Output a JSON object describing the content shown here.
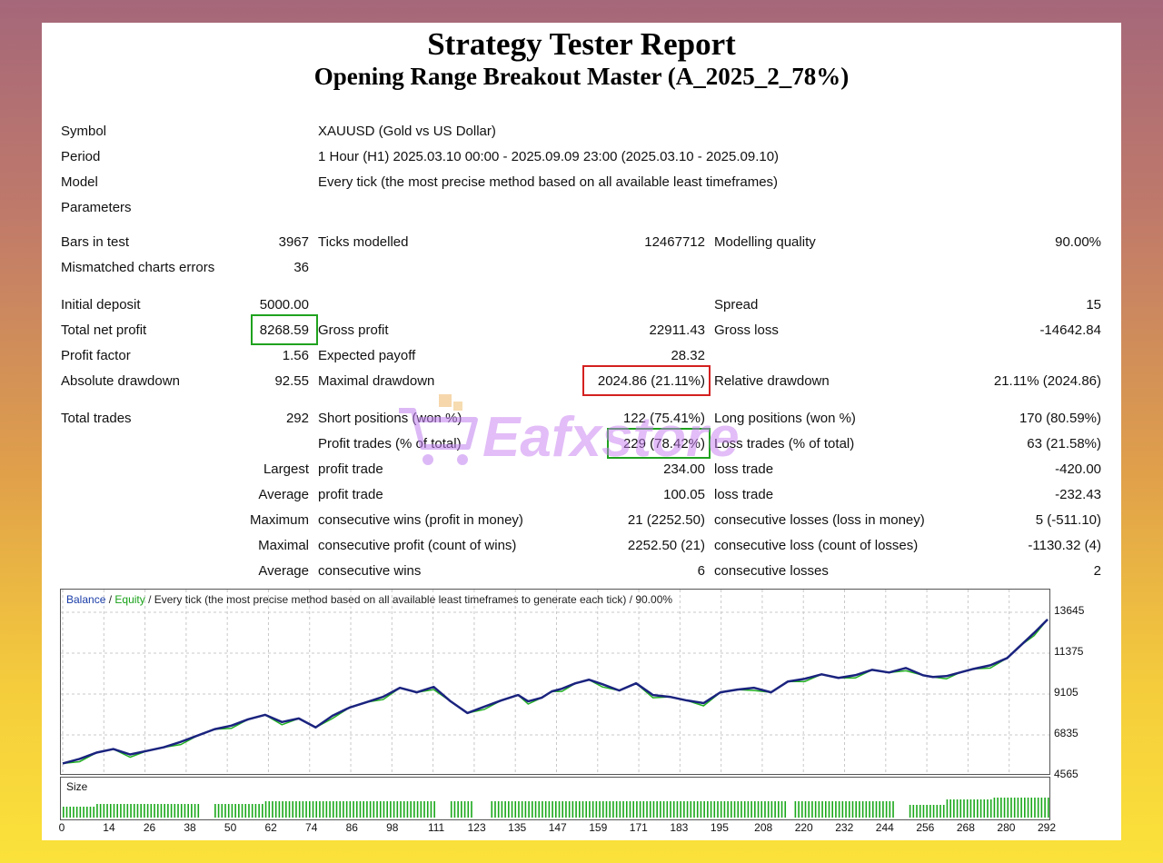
{
  "report": {
    "title": "Strategy Tester Report",
    "subtitle": "Opening Range Breakout Master (A_2025_2_78%)"
  },
  "info": {
    "symbol_label": "Symbol",
    "symbol_value": "XAUUSD (Gold vs US Dollar)",
    "period_label": "Period",
    "period_value": "1 Hour (H1) 2025.03.10 00:00 - 2025.09.09 23:00 (2025.03.10 - 2025.09.10)",
    "model_label": "Model",
    "model_value": "Every tick (the most precise method based on all available least timeframes)",
    "parameters_label": "Parameters"
  },
  "stats": {
    "bars_label": "Bars in test",
    "bars_value": "3967",
    "ticks_label": "Ticks modelled",
    "ticks_value": "12467712",
    "quality_label": "Modelling quality",
    "quality_value": "90.00%",
    "mismatched_label": "Mismatched charts errors",
    "mismatched_value": "36",
    "initial_label": "Initial deposit",
    "initial_value": "5000.00",
    "spread_label": "Spread",
    "spread_value": "15",
    "netprofit_label": "Total net profit",
    "netprofit_value": "8268.59",
    "grossprofit_label": "Gross profit",
    "grossprofit_value": "22911.43",
    "grossloss_label": "Gross loss",
    "grossloss_value": "-14642.84",
    "pf_label": "Profit factor",
    "pf_value": "1.56",
    "payoff_label": "Expected payoff",
    "payoff_value": "28.32",
    "absdd_label": "Absolute drawdown",
    "absdd_value": "92.55",
    "maxdd_label": "Maximal drawdown",
    "maxdd_value": "2024.86 (21.11%)",
    "reldd_label": "Relative drawdown",
    "reldd_value": "21.11% (2024.86)",
    "trades_label": "Total trades",
    "trades_value": "292",
    "short_label": "Short positions (won %)",
    "short_value": "122 (75.41%)",
    "long_label": "Long positions (won %)",
    "long_value": "170 (80.59%)",
    "proftrades_label": "Profit trades (% of total)",
    "proftrades_value": "229 (78.42%)",
    "losstrades_label": "Loss trades (% of total)",
    "losstrades_value": "63 (21.58%)",
    "largest_label": "Largest",
    "largest_profit_label": "profit trade",
    "largest_profit_value": "234.00",
    "largest_loss_label": "loss trade",
    "largest_loss_value": "-420.00",
    "average_label": "Average",
    "average_profit_label": "profit trade",
    "average_profit_value": "100.05",
    "average_loss_label": "loss trade",
    "average_loss_value": "-232.43",
    "maximum_label": "Maximum",
    "max_wins_label": "consecutive wins (profit in money)",
    "max_wins_value": "21 (2252.50)",
    "max_losses_label": "consecutive losses (loss in money)",
    "max_losses_value": "5 (-511.10)",
    "maximal_label": "Maximal",
    "maximal_profit_label": "consecutive profit (count of wins)",
    "maximal_profit_value": "2252.50 (21)",
    "maximal_loss_label": "consecutive loss (count of losses)",
    "maximal_loss_value": "-1130.32 (4)",
    "avgcons_label": "Average",
    "avg_wins_label": "consecutive wins",
    "avg_wins_value": "6",
    "avg_losses_label": "consecutive losses",
    "avg_losses_value": "2"
  },
  "watermark": {
    "text": "Eafxstore",
    "icon": "shopping-cart-icon"
  },
  "colors": {
    "balance": "#1a237e",
    "equity": "#22b022",
    "grid": "#c8c8c8",
    "box_green": "#1fa21f",
    "box_red": "#d42020",
    "size_bars": "#1aa81a"
  },
  "chart": {
    "legend_balance": "Balance",
    "legend_sep1": " / ",
    "legend_equity": "Equity",
    "legend_rest": " / Every tick (the most precise method based on all available least timeframes to generate each tick) / 90.00%",
    "yticks": [
      "13645",
      "11375",
      "9105",
      "6835",
      "4565"
    ],
    "xticks": [
      "0",
      "14",
      "26",
      "38",
      "50",
      "62",
      "74",
      "86",
      "98",
      "111",
      "123",
      "135",
      "147",
      "159",
      "171",
      "183",
      "195",
      "208",
      "220",
      "232",
      "244",
      "256",
      "268",
      "280",
      "292"
    ],
    "size_label": "Size"
  },
  "chart_data": {
    "type": "line",
    "title": "",
    "xlabel": "",
    "ylabel": "",
    "ylim": [
      4565,
      13645
    ],
    "xlim": [
      0,
      292
    ],
    "series": [
      {
        "name": "Balance",
        "x": [
          0,
          5,
          10,
          15,
          20,
          25,
          30,
          35,
          40,
          45,
          50,
          55,
          60,
          65,
          70,
          75,
          80,
          85,
          90,
          95,
          100,
          105,
          110,
          115,
          120,
          125,
          130,
          135,
          138,
          142,
          145,
          148,
          152,
          156,
          160,
          165,
          170,
          175,
          180,
          185,
          190,
          195,
          200,
          205,
          210,
          215,
          220,
          225,
          230,
          235,
          240,
          245,
          250,
          255,
          258,
          262,
          266,
          270,
          275,
          280,
          284,
          288,
          292
        ],
        "y": [
          5250,
          5500,
          5850,
          6050,
          5750,
          5950,
          6150,
          6450,
          6800,
          7150,
          7350,
          7700,
          7950,
          7550,
          7750,
          7250,
          7900,
          8350,
          8650,
          8950,
          9450,
          9200,
          9500,
          8700,
          8050,
          8400,
          8750,
          9050,
          8700,
          8900,
          9250,
          9400,
          9700,
          9900,
          9650,
          9300,
          9700,
          9050,
          8950,
          8750,
          8600,
          9200,
          9350,
          9450,
          9200,
          9800,
          9950,
          10200,
          10000,
          10150,
          10450,
          10300,
          10550,
          10150,
          10050,
          10100,
          10300,
          10500,
          10700,
          11100,
          11800,
          12500,
          13250
        ]
      }
    ],
    "size_series": {
      "name": "Size",
      "note_levels": "low early, higher middle, highest late"
    }
  }
}
